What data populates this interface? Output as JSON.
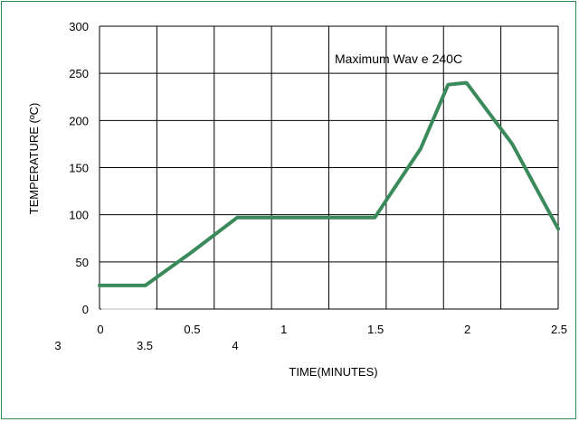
{
  "chart_data": {
    "type": "line",
    "title": "",
    "xlabel": "TIME(MINUTES)",
    "ylabel": "TEMPERATURE (ºC)",
    "xlim": [
      0,
      2.5
    ],
    "ylim": [
      0,
      300
    ],
    "grid": true,
    "x_ticks": [
      "0",
      "0.5",
      "1",
      "1.5",
      "2",
      "2.5"
    ],
    "x_ticks_secondary": [
      "3",
      "3.5",
      "4"
    ],
    "y_ticks": [
      "0",
      "50",
      "100",
      "150",
      "200",
      "250",
      "300"
    ],
    "annotation": "Maximum Wav e 240C",
    "series": [
      {
        "color": "#3a8a5c",
        "x": [
          0,
          0.25,
          0.5,
          0.75,
          1.0,
          1.25,
          1.5,
          1.75,
          1.9,
          2.0,
          2.25,
          2.5
        ],
        "y": [
          25,
          25,
          60,
          97,
          97,
          97,
          97,
          170,
          238,
          240,
          175,
          85
        ]
      }
    ]
  }
}
